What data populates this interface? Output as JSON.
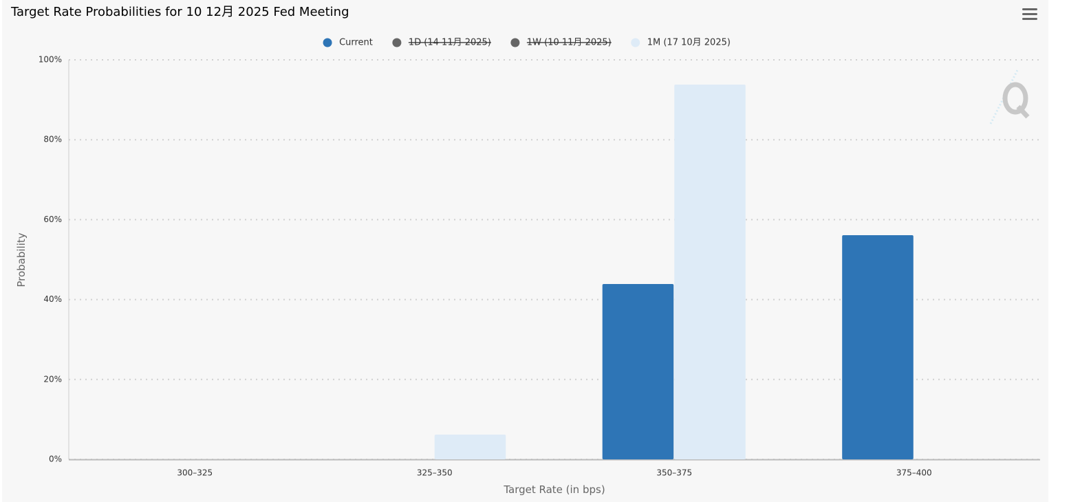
{
  "chart_data": {
    "type": "bar",
    "title": "Target Rate Probabilities for 10 12月 2025 Fed Meeting",
    "x_label": "Target Rate (in bps)",
    "y_label": "Probability",
    "categories": [
      "300–325",
      "325–350",
      "350–375",
      "375–400"
    ],
    "series": [
      {
        "name": "Current",
        "color": "#2e75b6",
        "visible": true,
        "values": [
          0,
          0,
          43.9,
          56.1
        ]
      },
      {
        "name": "1D (14 11月 2025)",
        "color": "#666666",
        "visible": false
      },
      {
        "name": "1W (10 11月 2025)",
        "color": "#666666",
        "visible": false
      },
      {
        "name": "1M (17 10月 2025)",
        "color": "#deebf7",
        "visible": true,
        "values": [
          0,
          6.2,
          93.8,
          0
        ]
      }
    ],
    "ylim": [
      0,
      100
    ],
    "yticks": [
      {
        "value": 0,
        "label": "0%"
      },
      {
        "value": 20,
        "label": "20%"
      },
      {
        "value": 40,
        "label": "40%"
      },
      {
        "value": 60,
        "label": "60%"
      },
      {
        "value": 80,
        "label": "80%"
      },
      {
        "value": 100,
        "label": "100%"
      }
    ],
    "grid": true
  }
}
